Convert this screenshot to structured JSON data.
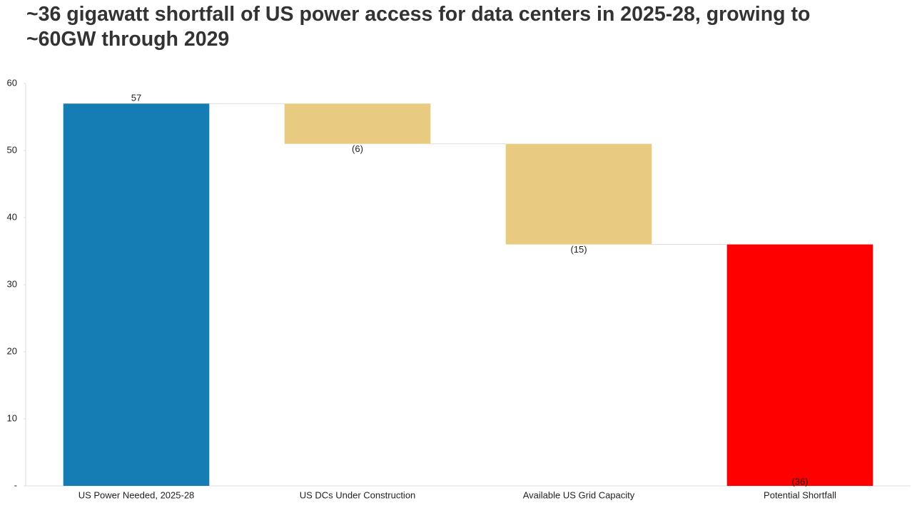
{
  "chart_data": {
    "type": "waterfall",
    "title": "~36 gigawatt shortfall of US power access for data centers in 2025-28, growing to ~60GW through 2029",
    "categories": [
      "US Power Needed, 2025-28",
      "US DCs Under Construction",
      "Available US Grid Capacity",
      "Potential Shortfall"
    ],
    "values": [
      57,
      -6,
      -15,
      36
    ],
    "value_labels": [
      "57",
      "(6)",
      "(15)",
      "(36)"
    ],
    "measure": [
      "absolute",
      "relative",
      "relative",
      "total"
    ],
    "colors": [
      "#157db3",
      "#e8cb80",
      "#e8cb80",
      "#ff0000"
    ],
    "ylim": [
      0,
      60
    ],
    "yticks": [
      {
        "value": 0,
        "label": "-"
      },
      10,
      20,
      30,
      40,
      50,
      60
    ],
    "grid": false
  }
}
